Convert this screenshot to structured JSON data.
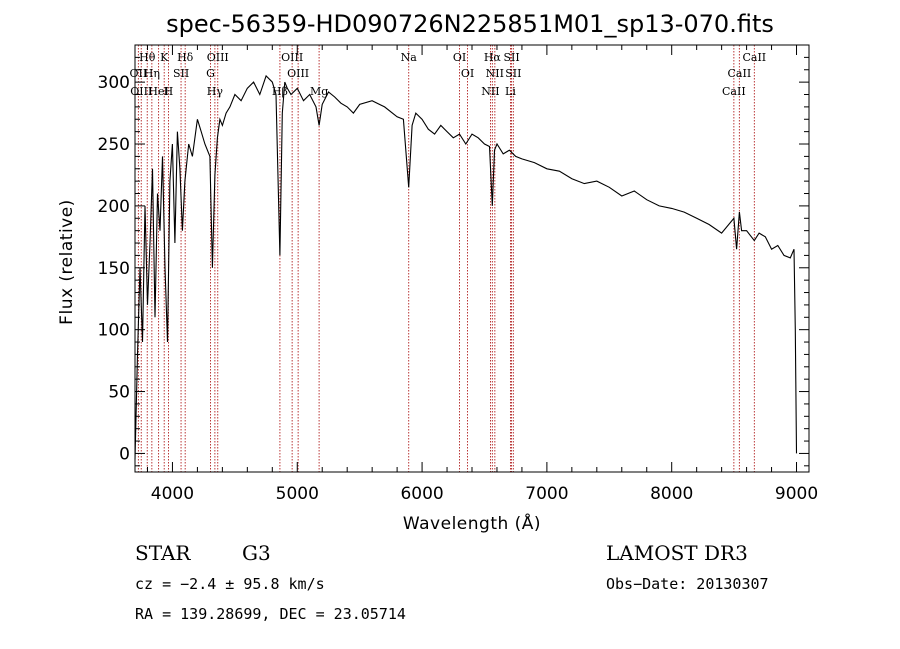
{
  "colors": {
    "axes": "#000000",
    "spectrum": "#000000",
    "line_marker": "#b22222"
  },
  "chart_data": {
    "type": "line",
    "title": "spec-56359-HD090726N225851M01_sp13-070.fits",
    "xlabel": "Wavelength (Å)",
    "ylabel": "Flux (relative)",
    "xlim": [
      3700,
      9100
    ],
    "ylim": [
      -15,
      330
    ],
    "xticks": [
      4000,
      5000,
      6000,
      7000,
      8000,
      9000
    ],
    "yticks": [
      0,
      50,
      100,
      150,
      200,
      250,
      300
    ],
    "series": [
      {
        "name": "spectrum",
        "x": [
          3700,
          3720,
          3740,
          3760,
          3780,
          3800,
          3820,
          3840,
          3860,
          3880,
          3900,
          3920,
          3940,
          3960,
          3980,
          4000,
          4020,
          4040,
          4060,
          4080,
          4100,
          4130,
          4160,
          4200,
          4230,
          4260,
          4300,
          4320,
          4340,
          4360,
          4380,
          4400,
          4430,
          4460,
          4500,
          4550,
          4600,
          4650,
          4700,
          4750,
          4800,
          4830,
          4861,
          4880,
          4900,
          4920,
          4950,
          5000,
          5050,
          5100,
          5150,
          5175,
          5200,
          5250,
          5300,
          5350,
          5400,
          5450,
          5500,
          5600,
          5700,
          5800,
          5850,
          5893,
          5920,
          5950,
          6000,
          6050,
          6100,
          6150,
          6200,
          6250,
          6300,
          6350,
          6400,
          6450,
          6500,
          6540,
          6563,
          6580,
          6600,
          6650,
          6700,
          6750,
          6800,
          6900,
          7000,
          7100,
          7200,
          7300,
          7400,
          7500,
          7600,
          7700,
          7800,
          7900,
          8000,
          8100,
          8200,
          8300,
          8400,
          8498,
          8520,
          8542,
          8560,
          8600,
          8662,
          8700,
          8750,
          8800,
          8850,
          8900,
          8950,
          8980,
          8990,
          9000
        ],
        "y": [
          -5,
          80,
          150,
          90,
          200,
          120,
          170,
          230,
          110,
          210,
          180,
          240,
          150,
          90,
          220,
          250,
          170,
          260,
          230,
          180,
          220,
          250,
          240,
          270,
          260,
          250,
          240,
          150,
          225,
          255,
          270,
          265,
          275,
          280,
          290,
          285,
          295,
          300,
          290,
          305,
          300,
          290,
          160,
          275,
          300,
          295,
          290,
          295,
          285,
          290,
          280,
          265,
          282,
          292,
          288,
          283,
          280,
          275,
          282,
          285,
          280,
          272,
          270,
          215,
          265,
          275,
          270,
          262,
          258,
          265,
          260,
          255,
          258,
          250,
          258,
          255,
          250,
          248,
          200,
          245,
          250,
          242,
          245,
          240,
          238,
          235,
          230,
          228,
          222,
          218,
          220,
          215,
          208,
          212,
          205,
          200,
          198,
          195,
          190,
          185,
          178,
          190,
          165,
          195,
          180,
          180,
          172,
          178,
          175,
          165,
          168,
          160,
          158,
          165,
          100,
          0
        ]
      }
    ],
    "lines_top": [
      {
        "label": "Hθ",
        "x": 3798
      },
      {
        "label": "K",
        "x": 3934
      },
      {
        "label": "Hδ",
        "x": 4102
      },
      {
        "label": "OIII",
        "x": 4363
      },
      {
        "label": "OIII",
        "x": 4959
      },
      {
        "label": "Na",
        "x": 5893
      },
      {
        "label": "OI",
        "x": 6300
      },
      {
        "label": "Hα",
        "x": 6563
      },
      {
        "label": "SII",
        "x": 6717
      },
      {
        "label": "CaII",
        "x": 8662
      }
    ],
    "lines_bottom": [
      {
        "label": "OII",
        "x": 3727
      },
      {
        "label": "OIII",
        "x": 3750
      },
      {
        "label": "Hη",
        "x": 3835
      },
      {
        "label": "HeI",
        "x": 3889
      },
      {
        "label": "SII",
        "x": 4069
      },
      {
        "label": "Hγ",
        "x": 4340
      },
      {
        "label": "G",
        "x": 4305
      },
      {
        "label": "Hβ",
        "x": 4861
      },
      {
        "label": "OIII",
        "x": 5007
      },
      {
        "label": "Mg",
        "x": 5175
      },
      {
        "label": "OI",
        "x": 6364
      },
      {
        "label": "NII",
        "x": 6548
      },
      {
        "label": "NII",
        "x": 6583
      },
      {
        "label": "Li",
        "x": 6708
      },
      {
        "label": "SII",
        "x": 6731
      },
      {
        "label": "CaII",
        "x": 8498
      },
      {
        "label": "CaII",
        "x": 8542
      },
      {
        "label": "H",
        "x": 3968
      }
    ],
    "line_marker_positions": [
      3727,
      3750,
      3798,
      3835,
      3889,
      3934,
      3968,
      4069,
      4102,
      4305,
      4340,
      4363,
      4861,
      4959,
      5007,
      5175,
      5893,
      6300,
      6364,
      6548,
      6563,
      6583,
      6708,
      6717,
      6731,
      8498,
      8542,
      8662
    ]
  },
  "info": {
    "class_label": "STAR",
    "subclass": "G3",
    "survey": "LAMOST DR3",
    "cz": "cz = −2.4 ± 95.8 km/s",
    "obs_date": "Obs−Date: 20130307",
    "radec": "RA = 139.28699, DEC =  23.05714"
  }
}
